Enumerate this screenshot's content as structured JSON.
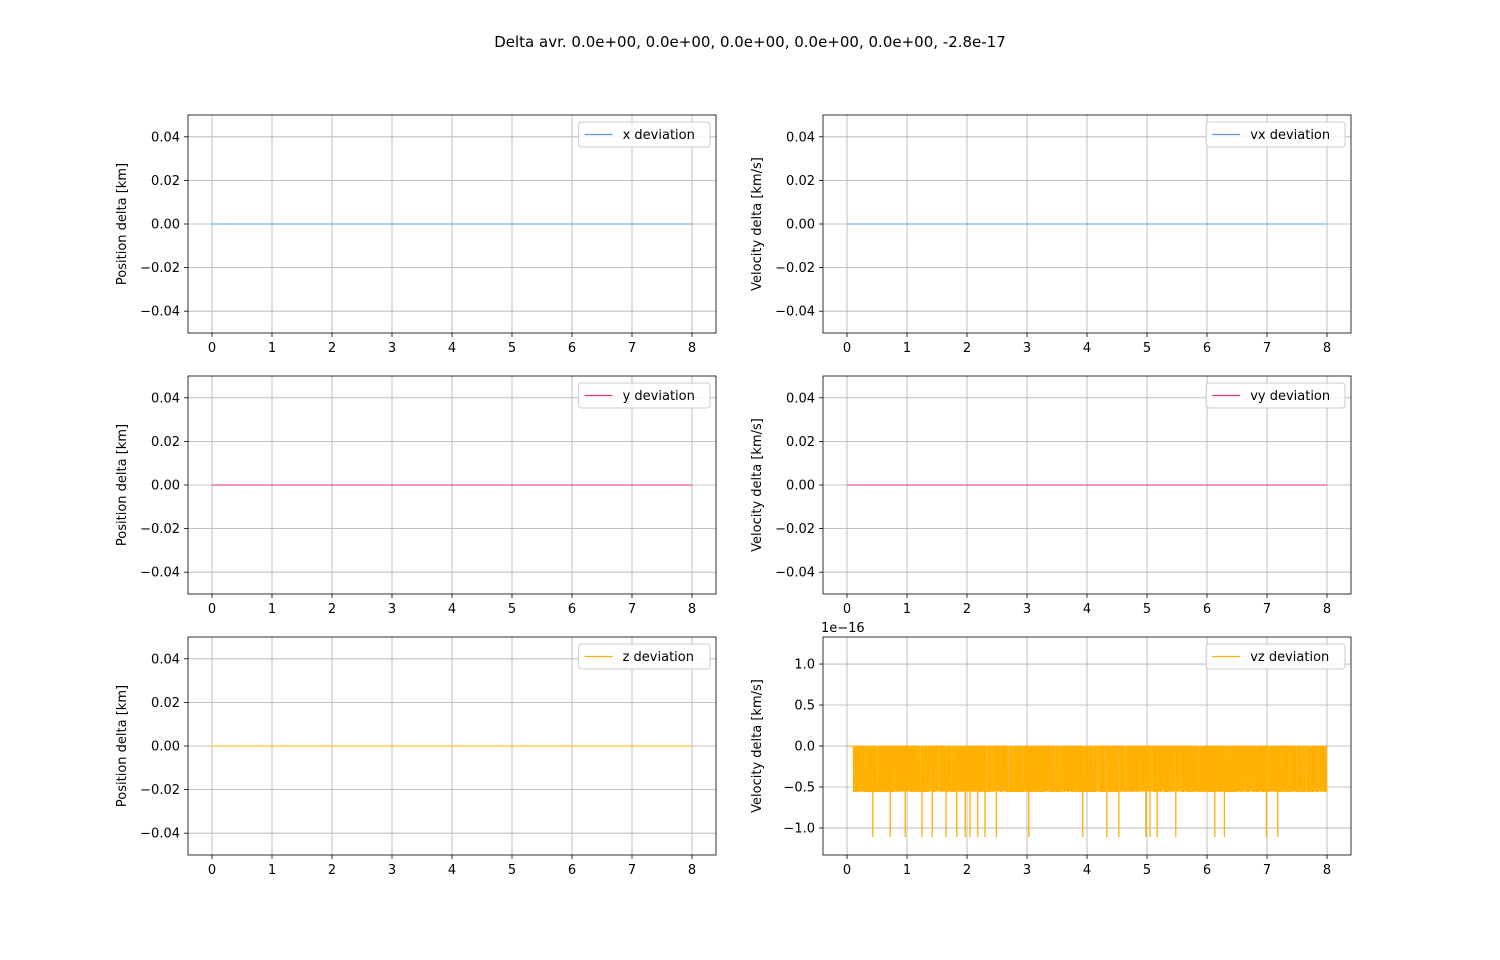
{
  "figure": {
    "suptitle": "Delta avr. 0.0e+00, 0.0e+00, 0.0e+00, 0.0e+00, 0.0e+00, -2.8e-17"
  },
  "chart_data": [
    {
      "id": "x",
      "type": "line",
      "ylabel": "Position delta [km]",
      "xlim": [
        -0.4,
        8.4
      ],
      "ylim": [
        -0.05,
        0.05
      ],
      "xticks": [
        0,
        1,
        2,
        3,
        4,
        5,
        6,
        7,
        8
      ],
      "xtick_labels": [
        "0",
        "1",
        "2",
        "3",
        "4",
        "5",
        "6",
        "7",
        "8"
      ],
      "yticks": [
        -0.04,
        -0.02,
        0.0,
        0.02,
        0.04
      ],
      "ytick_labels": [
        "−0.04",
        "−0.02",
        "0.00",
        "0.02",
        "0.04"
      ],
      "grid": true,
      "legend_loc": "upper right",
      "series": [
        {
          "name": "x deviation",
          "color": "#6495ed",
          "x": [
            0,
            8
          ],
          "y": [
            0,
            0
          ]
        }
      ]
    },
    {
      "id": "vx",
      "type": "line",
      "ylabel": "Velocity delta [km/s]",
      "xlim": [
        -0.4,
        8.4
      ],
      "ylim": [
        -0.05,
        0.05
      ],
      "xticks": [
        0,
        1,
        2,
        3,
        4,
        5,
        6,
        7,
        8
      ],
      "xtick_labels": [
        "0",
        "1",
        "2",
        "3",
        "4",
        "5",
        "6",
        "7",
        "8"
      ],
      "yticks": [
        -0.04,
        -0.02,
        0.0,
        0.02,
        0.04
      ],
      "ytick_labels": [
        "−0.04",
        "−0.02",
        "0.00",
        "0.02",
        "0.04"
      ],
      "grid": true,
      "legend_loc": "upper right",
      "series": [
        {
          "name": "vx deviation",
          "color": "#6495ed",
          "x": [
            0,
            8
          ],
          "y": [
            0,
            0
          ]
        }
      ]
    },
    {
      "id": "y",
      "type": "line",
      "ylabel": "Position delta [km]",
      "xlim": [
        -0.4,
        8.4
      ],
      "ylim": [
        -0.05,
        0.05
      ],
      "xticks": [
        0,
        1,
        2,
        3,
        4,
        5,
        6,
        7,
        8
      ],
      "xtick_labels": [
        "0",
        "1",
        "2",
        "3",
        "4",
        "5",
        "6",
        "7",
        "8"
      ],
      "yticks": [
        -0.04,
        -0.02,
        0.0,
        0.02,
        0.04
      ],
      "ytick_labels": [
        "−0.04",
        "−0.02",
        "0.00",
        "0.02",
        "0.04"
      ],
      "grid": true,
      "legend_loc": "upper right",
      "series": [
        {
          "name": "y deviation",
          "color": "#e8336d",
          "x": [
            0,
            8
          ],
          "y": [
            0,
            0
          ]
        }
      ]
    },
    {
      "id": "vy",
      "type": "line",
      "ylabel": "Velocity delta [km/s]",
      "xlim": [
        -0.4,
        8.4
      ],
      "ylim": [
        -0.05,
        0.05
      ],
      "xticks": [
        0,
        1,
        2,
        3,
        4,
        5,
        6,
        7,
        8
      ],
      "xtick_labels": [
        "0",
        "1",
        "2",
        "3",
        "4",
        "5",
        "6",
        "7",
        "8"
      ],
      "yticks": [
        -0.04,
        -0.02,
        0.0,
        0.02,
        0.04
      ],
      "ytick_labels": [
        "−0.04",
        "−0.02",
        "0.00",
        "0.02",
        "0.04"
      ],
      "grid": true,
      "legend_loc": "upper right",
      "series": [
        {
          "name": "vy deviation",
          "color": "#e8336d",
          "x": [
            0,
            8
          ],
          "y": [
            0,
            0
          ]
        }
      ]
    },
    {
      "id": "z",
      "type": "line",
      "ylabel": "Position delta [km]",
      "xlim": [
        -0.4,
        8.4
      ],
      "ylim": [
        -0.05,
        0.05
      ],
      "xticks": [
        0,
        1,
        2,
        3,
        4,
        5,
        6,
        7,
        8
      ],
      "xtick_labels": [
        "0",
        "1",
        "2",
        "3",
        "4",
        "5",
        "6",
        "7",
        "8"
      ],
      "yticks": [
        -0.04,
        -0.02,
        0.0,
        0.02,
        0.04
      ],
      "ytick_labels": [
        "−0.04",
        "−0.02",
        "0.00",
        "0.02",
        "0.04"
      ],
      "grid": true,
      "legend_loc": "upper right",
      "series": [
        {
          "name": "z deviation",
          "color": "#ffb000",
          "x": [
            0,
            8
          ],
          "y": [
            0,
            0
          ]
        }
      ]
    },
    {
      "id": "vz",
      "type": "line",
      "ylabel": "Velocity delta [km/s]",
      "offset_text": "1e−16",
      "xlim": [
        -0.4,
        8.4
      ],
      "ylim": [
        -1.33,
        1.33
      ],
      "xticks": [
        0,
        1,
        2,
        3,
        4,
        5,
        6,
        7,
        8
      ],
      "xtick_labels": [
        "0",
        "1",
        "2",
        "3",
        "4",
        "5",
        "6",
        "7",
        "8"
      ],
      "yticks": [
        -1.0,
        -0.5,
        0.0,
        0.5,
        1.0
      ],
      "ytick_labels": [
        "−1.0",
        "−0.5",
        "0.0",
        "0.5",
        "1.0"
      ],
      "grid": true,
      "legend_loc": "upper right",
      "series": [
        {
          "name": "vz deviation",
          "color": "#ffb000",
          "noise": {
            "x_start": 0.1,
            "x_end": 8.0,
            "levels": [
              0.0,
              -0.555,
              -1.11
            ],
            "dense_band": [
              0.1,
              7.95
            ],
            "spikes_to_min_x": [
              0.43,
              0.72,
              0.97,
              1.25,
              1.42,
              1.65,
              1.83,
              1.97,
              2.05,
              2.18,
              2.3,
              2.49,
              3.03,
              3.93,
              4.33,
              4.53,
              4.98,
              5.05,
              5.17,
              5.48,
              6.13,
              6.29,
              6.99,
              7.18
            ]
          }
        }
      ]
    }
  ]
}
